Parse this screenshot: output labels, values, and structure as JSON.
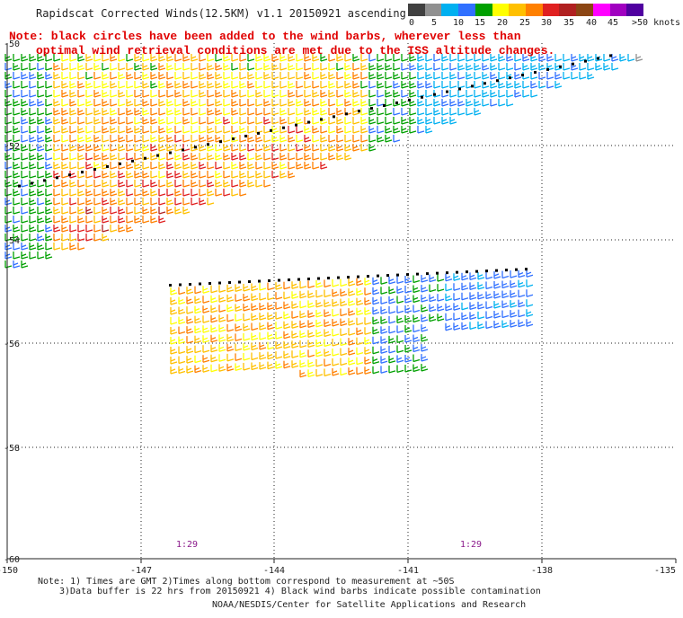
{
  "title": "Rapidscat Corrected Winds(12.5KM) v1.1 20150921 ascending",
  "note_line1": "Note: black circles have been added to the wind barbs, wherever less than",
  "note_line2": "optimal wind retrieval conditions are met due to the ISS altitude changes.",
  "legend": {
    "labels": [
      "0",
      "5",
      "10",
      "15",
      "20",
      "25",
      "30",
      "35",
      "40",
      "45",
      ">50 knots"
    ],
    "colors": [
      "#404040",
      "#909090",
      "#00b0f0",
      "#3070ff",
      "#00a000",
      "#ffff00",
      "#ffc000",
      "#ff8000",
      "#e02020",
      "#b02020",
      "#8b4513",
      "#ff00ff",
      "#a000c0",
      "#5000a0"
    ]
  },
  "axes": {
    "x_ticks": [
      "-150",
      "-147",
      "-144",
      "-141",
      "-138",
      "-135"
    ],
    "y_ticks": [
      "-50",
      "-52",
      "-54",
      "-56",
      "-58",
      "-60"
    ]
  },
  "time_labels": [
    "1:29",
    "1:29"
  ],
  "footer": {
    "line1": "Note: 1) Times are GMT 2)Times along bottom correspond to measurement at ~50S",
    "line2": "3)Data buffer is 22 hrs from 20150921 4) Black wind barbs indicate possible contamination",
    "line3": "NOAA/NESDIS/Center for Satellite Applications and Research"
  }
}
